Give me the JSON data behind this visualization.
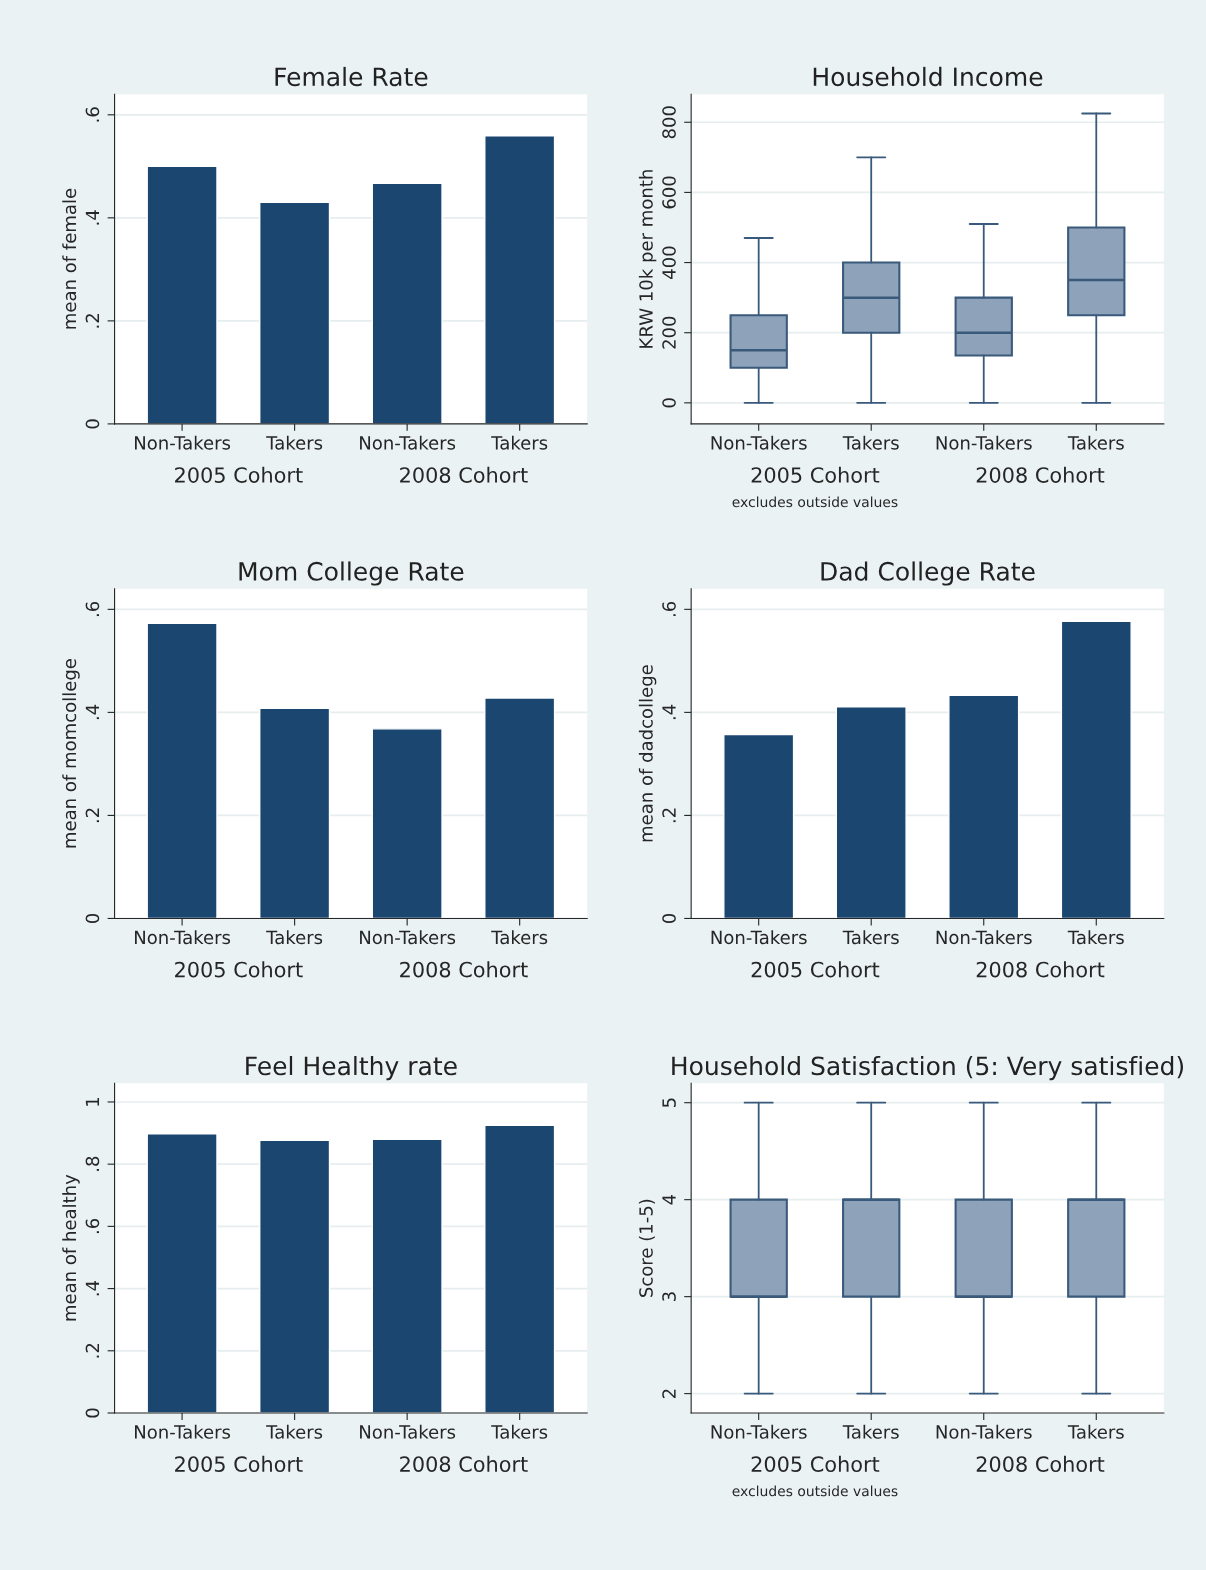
{
  "chart_data": [
    {
      "type": "bar",
      "title": "Female Rate",
      "ylabel": "mean of female",
      "categories": [
        "Non-Takers",
        "Takers",
        "Non-Takers",
        "Takers"
      ],
      "values": [
        0.5,
        0.43,
        0.467,
        0.559
      ],
      "color": "#1a4670",
      "ylim": [
        0,
        0.64
      ],
      "yticks": [
        0,
        {
          "value": 0.2,
          "label": ".2"
        },
        {
          "value": 0.4,
          "label": ".4"
        },
        {
          "value": 0.6,
          "label": ".6"
        }
      ],
      "grid": "y",
      "annotations": [
        "2005 Cohort",
        "2008 Cohort"
      ]
    },
    {
      "type": "box",
      "title": "Household Income",
      "ylabel": "KRW 10k per month",
      "categories": [
        "Non-Takers",
        "Takers",
        "Non-Takers",
        "Takers"
      ],
      "color": "#8ea3b9",
      "boxes": [
        {
          "low": 0,
          "q1": 100,
          "median": 150,
          "q3": 250,
          "high": 470
        },
        {
          "low": 0,
          "q1": 200,
          "median": 300,
          "q3": 400,
          "high": 700
        },
        {
          "low": 0,
          "q1": 135,
          "median": 200,
          "q3": 300,
          "high": 510
        },
        {
          "low": 0,
          "q1": 250,
          "median": 350,
          "q3": 500,
          "high": 825
        }
      ],
      "ylim": [
        -60,
        880
      ],
      "yticks": [
        0,
        200,
        400,
        600,
        800
      ],
      "grid": "y",
      "annotations": [
        "2005 Cohort",
        "2008 Cohort",
        "excludes outside values"
      ]
    },
    {
      "type": "bar",
      "title": "Mom College Rate",
      "ylabel": "mean of momcollege",
      "categories": [
        "Non-Takers",
        "Takers",
        "Non-Takers",
        "Takers"
      ],
      "values": [
        0.573,
        0.408,
        0.368,
        0.428
      ],
      "color": "#1a4670",
      "ylim": [
        0,
        0.64
      ],
      "yticks": [
        0,
        {
          "value": 0.2,
          "label": ".2"
        },
        {
          "value": 0.4,
          "label": ".4"
        },
        {
          "value": 0.6,
          "label": ".6"
        }
      ],
      "grid": "y",
      "annotations": [
        "2005 Cohort",
        "2008 Cohort"
      ]
    },
    {
      "type": "bar",
      "title": "Dad College Rate",
      "ylabel": "mean of dadcollege",
      "categories": [
        "Non-Takers",
        "Takers",
        "Non-Takers",
        "Takers"
      ],
      "values": [
        0.357,
        0.411,
        0.433,
        0.577
      ],
      "color": "#1a4670",
      "ylim": [
        0,
        0.64
      ],
      "yticks": [
        0,
        {
          "value": 0.2,
          "label": ".2"
        },
        {
          "value": 0.4,
          "label": ".4"
        },
        {
          "value": 0.6,
          "label": ".6"
        }
      ],
      "grid": "y",
      "annotations": [
        "2005 Cohort",
        "2008 Cohort"
      ]
    },
    {
      "type": "bar",
      "title": "Feel Healthy rate",
      "ylabel": "mean of healthy",
      "categories": [
        "Non-Takers",
        "Takers",
        "Non-Takers",
        "Takers"
      ],
      "values": [
        0.898,
        0.877,
        0.88,
        0.925
      ],
      "color": "#1a4670",
      "ylim": [
        0,
        1.06
      ],
      "yticks": [
        0,
        {
          "value": 0.2,
          "label": ".2"
        },
        {
          "value": 0.4,
          "label": ".4"
        },
        {
          "value": 0.6,
          "label": ".6"
        },
        {
          "value": 0.8,
          "label": ".8"
        },
        1
      ],
      "grid": "y",
      "annotations": [
        "2005 Cohort",
        "2008 Cohort"
      ]
    },
    {
      "type": "box",
      "title": "Household Satisfaction (5: Very satisfied)",
      "ylabel": "Score (1-5)",
      "categories": [
        "Non-Takers",
        "Takers",
        "Non-Takers",
        "Takers"
      ],
      "color": "#8ea3b9",
      "boxes": [
        {
          "low": 2,
          "q1": 3,
          "median": 3,
          "q3": 4,
          "high": 5
        },
        {
          "low": 2,
          "q1": 3,
          "median": 4,
          "q3": 4,
          "high": 5
        },
        {
          "low": 2,
          "q1": 3,
          "median": 3,
          "q3": 4,
          "high": 5
        },
        {
          "low": 2,
          "q1": 3,
          "median": 4,
          "q3": 4,
          "high": 5
        }
      ],
      "ylim": [
        1.8,
        5.2
      ],
      "yticks": [
        2,
        3,
        4,
        5
      ],
      "grid": "y",
      "annotations": [
        "2005 Cohort",
        "2008 Cohort",
        "excludes outside values"
      ]
    }
  ]
}
